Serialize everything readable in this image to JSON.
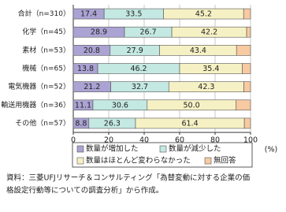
{
  "chart_data": {
    "type": "stacked-bar-horizontal",
    "categories": [
      "合計（n=310）",
      "化学（n=45）",
      "素材（n=53）",
      "機械（n=65）",
      "電気機器（n=52）",
      "輸送用機器（n=36）",
      "その他（n=57）"
    ],
    "series": [
      {
        "name": "数量が増加した",
        "color": "#aaa3d3",
        "values": [
          17.4,
          28.9,
          20.8,
          13.8,
          21.2,
          11.1,
          8.8
        ],
        "value_labels": [
          "17.4",
          "28.9",
          "20.8",
          "13.8",
          "21.2",
          "11.1",
          "8.8"
        ]
      },
      {
        "name": "数量が減少した",
        "color": "#c4e8e2",
        "values": [
          33.5,
          26.7,
          27.9,
          46.2,
          32.7,
          30.6,
          26.3
        ],
        "value_labels": [
          "33.5",
          "26.7",
          "27.9",
          "46.2",
          "32.7",
          "30.6",
          "26.3"
        ]
      },
      {
        "name": "数量はほとんど変わらなかった",
        "color": "#f6f1c4",
        "values": [
          45.2,
          42.2,
          43.4,
          35.4,
          42.3,
          50.0,
          61.4
        ],
        "value_labels": [
          "45.2",
          "42.2",
          "43.4",
          "35.4",
          "42.3",
          "50.0",
          "61.4"
        ]
      },
      {
        "name": "無回答",
        "color": "#f7caa2",
        "values": [
          3.9,
          2.2,
          7.9,
          4.6,
          3.8,
          8.3,
          3.5
        ]
      }
    ],
    "xlim": [
      0,
      100
    ],
    "xticks": [
      0,
      20,
      40,
      60,
      80,
      100
    ],
    "x_unit": "(%)",
    "grid": true,
    "source": [
      "資料：三菱UFJリサーチ＆コンサルティング「為替変動に対する企業の価",
      "格設定行動等についての調査分析」から作成。"
    ]
  }
}
